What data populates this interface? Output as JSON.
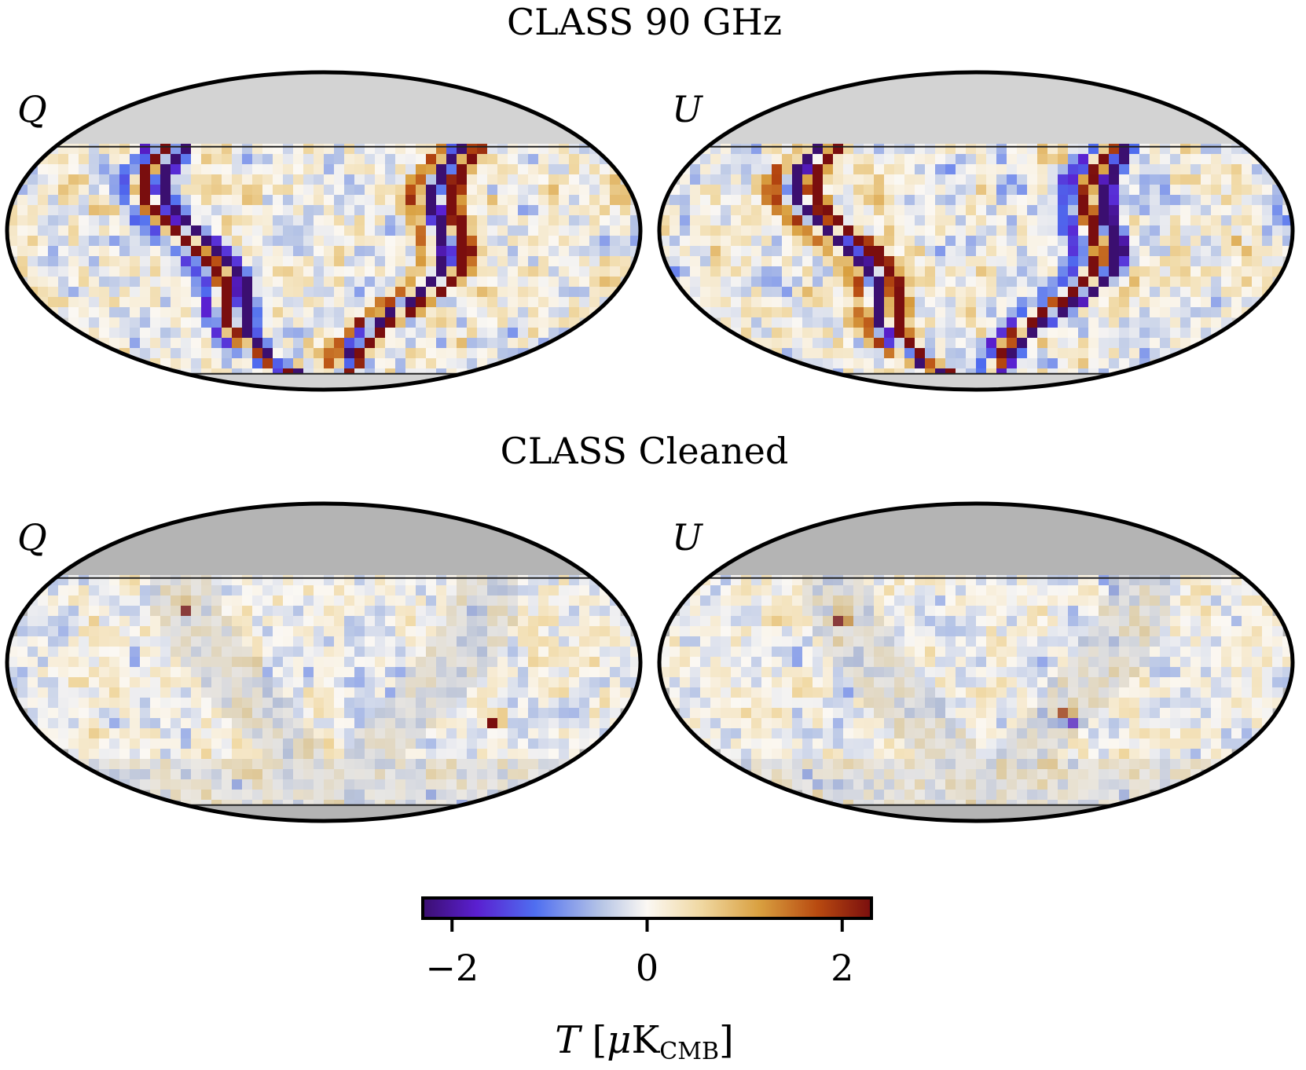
{
  "figure": {
    "row_titles": [
      "CLASS 90 GHz",
      "CLASS Cleaned"
    ],
    "panel_labels": {
      "q": "Q",
      "u": "U"
    }
  },
  "colormap": {
    "stops": [
      {
        "t": 0.0,
        "color": "#3b0f70"
      },
      {
        "t": 0.12,
        "color": "#5a1fd0"
      },
      {
        "t": 0.25,
        "color": "#4f6ef0"
      },
      {
        "t": 0.4,
        "color": "#b8c6e6"
      },
      {
        "t": 0.5,
        "color": "#fbf8f3"
      },
      {
        "t": 0.62,
        "color": "#f0d8a2"
      },
      {
        "t": 0.75,
        "color": "#d9a040"
      },
      {
        "t": 0.88,
        "color": "#b84a10"
      },
      {
        "t": 1.0,
        "color": "#7a0e0e"
      }
    ],
    "mask_color_top": "#d3d3d3",
    "mask_color_bottom": "#b4b4b4"
  },
  "chart_data": {
    "type": "heatmap",
    "projection": "mollweide",
    "panels": [
      {
        "row": "CLASS 90 GHz",
        "stokes": "Q",
        "style": "raw",
        "seed": 11,
        "flip": 0
      },
      {
        "row": "CLASS 90 GHz",
        "stokes": "U",
        "style": "raw",
        "seed": 29,
        "flip": 1
      },
      {
        "row": "CLASS Cleaned",
        "stokes": "Q",
        "style": "clean",
        "seed": 47,
        "hot": [
          {
            "lon": -105,
            "lat": -27,
            "v": 2.1
          },
          {
            "lon": 83,
            "lat": 25,
            "v": 1.8
          }
        ]
      },
      {
        "row": "CLASS Cleaned",
        "stokes": "U",
        "style": "clean",
        "seed": 63,
        "hot": [
          {
            "lon": 80,
            "lat": 20,
            "v": 2.1
          },
          {
            "lon": -58,
            "lat": -27,
            "v": -2.0
          },
          {
            "lon": -55,
            "lat": -24,
            "v": 1.8
          }
        ]
      }
    ],
    "observed_lat_max_deg": 40,
    "colorbar": {
      "vmin": -2.3,
      "vmax": 2.3,
      "ticks": [
        -2,
        0,
        2
      ],
      "tick_labels": [
        "−2",
        "0",
        "2"
      ],
      "label_main": "T [μK",
      "label_sub": "CMB",
      "label_close": "]"
    }
  }
}
